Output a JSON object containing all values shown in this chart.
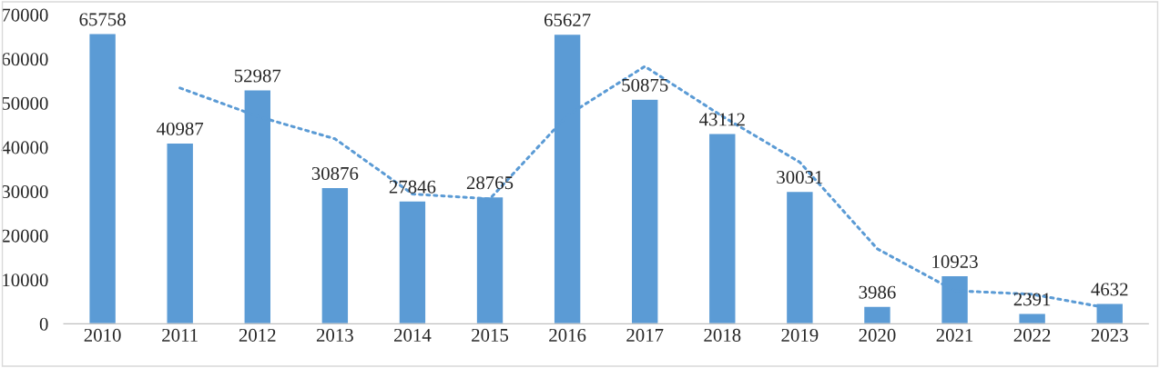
{
  "chart_data": {
    "type": "bar",
    "categories": [
      "2010",
      "2011",
      "2012",
      "2013",
      "2014",
      "2015",
      "2016",
      "2017",
      "2018",
      "2019",
      "2020",
      "2021",
      "2022",
      "2023"
    ],
    "series": [
      {
        "color": "#5b9bd5",
        "values": [
          65758,
          40987,
          52987,
          30876,
          27846,
          28765,
          65627,
          50875,
          43112,
          30031,
          3986,
          10923,
          2391,
          4632
        ],
        "value_labels": [
          "65758",
          "40987",
          "52987",
          "30876",
          "27846",
          "28765",
          "65627",
          "50875",
          "43112",
          "30031",
          "3986",
          "10923",
          "2391",
          "4632"
        ]
      },
      {
        "type": "line",
        "color": "#5b9bd5",
        "line_style": "dotted",
        "marker": "none",
        "values": [
          null,
          53400,
          47000,
          41900,
          29400,
          28300,
          47200,
          58300,
          47000,
          36600,
          17000,
          7500,
          6700,
          3500
        ]
      }
    ],
    "ylim": [
      0,
      70000
    ],
    "yticks": [
      0,
      10000,
      20000,
      30000,
      40000,
      50000,
      60000,
      70000
    ],
    "grid": false,
    "legend": false
  }
}
